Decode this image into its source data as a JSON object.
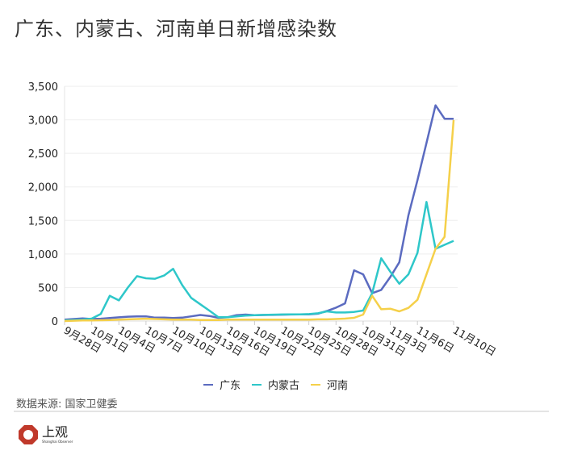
{
  "title": "广东、内蒙古、河南单日新增感染数",
  "source": "数据来源: 国家卫健委",
  "logo": {
    "cn": "上观",
    "en": "Shanghai Observer"
  },
  "chart_data": {
    "type": "line",
    "title": "广东、内蒙古、河南单日新增感染数",
    "xlabel": "",
    "ylabel": "",
    "ylim": [
      0,
      3500
    ],
    "yticks": [
      "0",
      "500",
      "1,000",
      "1,500",
      "2,000",
      "2,500",
      "3,000",
      "3,500"
    ],
    "ytick_values": [
      0,
      500,
      1000,
      1500,
      2000,
      2500,
      3000,
      3500
    ],
    "grid": true,
    "legend": "bottom",
    "x": [
      "9月28日",
      "9月29日",
      "9月30日",
      "10月1日",
      "10月2日",
      "10月3日",
      "10月4日",
      "10月5日",
      "10月6日",
      "10月7日",
      "10月8日",
      "10月9日",
      "10月10日",
      "10月11日",
      "10月12日",
      "10月13日",
      "10月14日",
      "10月15日",
      "10月16日",
      "10月17日",
      "10月18日",
      "10月19日",
      "10月20日",
      "10月21日",
      "10月22日",
      "10月23日",
      "10月24日",
      "10月25日",
      "10月26日",
      "10月27日",
      "10月28日",
      "10月29日",
      "10月30日",
      "10月31日",
      "11月1日",
      "11月2日",
      "11月3日",
      "11月4日",
      "11月5日",
      "11月6日",
      "11月7日",
      "11月8日",
      "11月9日",
      "11月10日"
    ],
    "xticks": [
      "9月28日",
      "10月1日",
      "10月4日",
      "10月7日",
      "10月10日",
      "10月13日",
      "10月16日",
      "10月19日",
      "10月22日",
      "10月25日",
      "10月28日",
      "10月31日",
      "11月3日",
      "11月6日",
      "11月10日"
    ],
    "series": [
      {
        "name": "广东",
        "color": "#5b6bc0",
        "values": [
          20,
          30,
          40,
          30,
          35,
          45,
          55,
          65,
          70,
          70,
          50,
          50,
          45,
          50,
          70,
          90,
          76,
          48,
          56,
          88,
          96,
          88,
          90,
          92,
          95,
          98,
          100,
          100,
          110,
          150,
          200,
          264,
          756,
          696,
          416,
          464,
          656,
          876,
          1576,
          2100,
          2656,
          3216,
          3016,
          3016
        ]
      },
      {
        "name": "内蒙古",
        "color": "#2ec7c9",
        "values": [
          10,
          15,
          20,
          36,
          105,
          376,
          308,
          500,
          669,
          638,
          630,
          678,
          778,
          537,
          345,
          250,
          156,
          58,
          58,
          70,
          80,
          88,
          92,
          95,
          98,
          100,
          100,
          104,
          116,
          144,
          128,
          128,
          136,
          156,
          416,
          936,
          736,
          556,
          696,
          1016,
          1776,
          1076,
          1136,
          1196
        ]
      },
      {
        "name": "河南",
        "color": "#f5d04a",
        "values": [
          0,
          5,
          10,
          10,
          12,
          15,
          20,
          25,
          30,
          35,
          30,
          25,
          20,
          20,
          20,
          15,
          15,
          15,
          20,
          20,
          20,
          20,
          20,
          20,
          20,
          20,
          20,
          20,
          25,
          25,
          30,
          36,
          48,
          96,
          376,
          176,
          184,
          144,
          196,
          316,
          696,
          1076,
          1256,
          2996
        ]
      }
    ]
  }
}
